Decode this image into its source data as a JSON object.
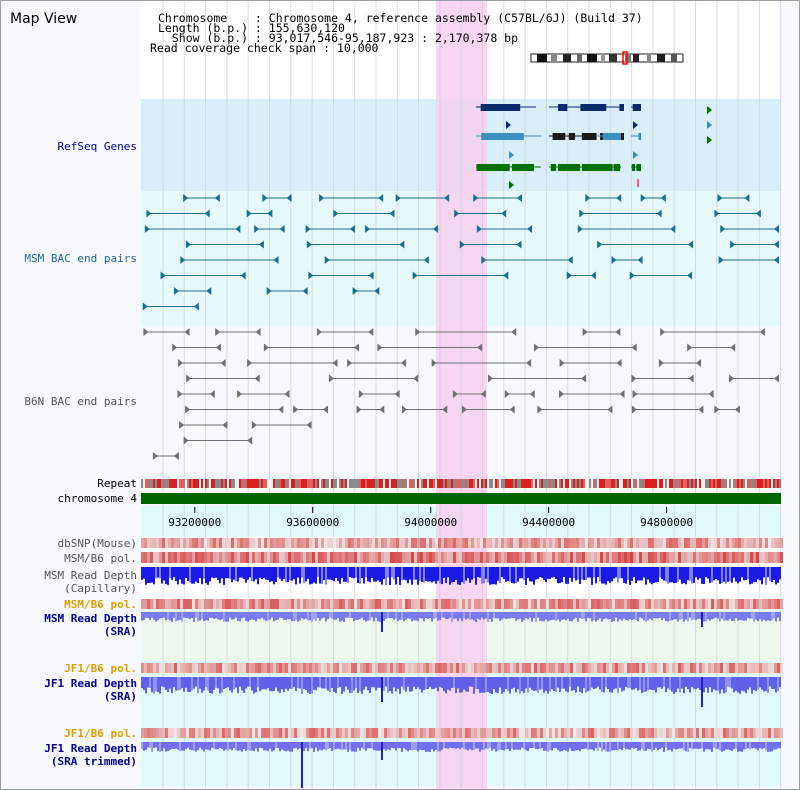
{
  "page": {
    "title": "Map View"
  },
  "info": {
    "chromosome_line": "Chromosome    : Chromosome 4, reference assembly (C57BL/6J) (Build 37)",
    "length_line": "Length (b.p.) : 155,630,120",
    "show_line": "  Show (b.p.) : 93,017,546-95,187,923 : 2,170,378 bp",
    "coverage_line": "Read coverage check span : 10,000"
  },
  "tracks": {
    "refseq": "RefSeq Genes",
    "msm_bac": "MSM BAC end pairs",
    "b6n_bac": "B6N BAC end pairs",
    "repeat": "Repeat",
    "chromosome": "chromosome 4",
    "dbsnp": "dbSNP(Mouse)",
    "msm_b6_pol": "MSM/B6 pol.",
    "msm_depth_cap": "MSM Read Depth\n(Capillary)",
    "msm_b6_pol_sra": "MSM/B6 pol.",
    "msm_depth_sra": "MSM Read Depth\n(SRA)",
    "jf1_b6_pol": "JF1/B6 pol.",
    "jf1_depth_sra": "JF1 Read Depth\n(SRA)",
    "jf1_b6_pol_2": "JF1/B6 pol.",
    "jf1_depth_trim": "JF1 Read Depth\n(SRA trimmed)"
  },
  "ruler": {
    "ticks": [
      "93200000",
      "93600000",
      "94000000",
      "94400000",
      "94800000"
    ],
    "view_start": 93017546,
    "view_end": 95187923
  },
  "colors": {
    "refseq_navy": "#0a2a6b",
    "refseq_teal": "#3e8fc0",
    "refseq_green": "#007000",
    "msm_bac": "#1a6f8f",
    "b6n_bac": "#707070",
    "chromosome": "#006400",
    "depth_blue": "#1a1ae6",
    "depth_light": "#7070f0",
    "highlight": "#f8d0f0",
    "label_navy": "#000090",
    "label_orange": "#e0a000",
    "label_gray": "#555555",
    "label_teal": "#1f6b8a"
  }
}
